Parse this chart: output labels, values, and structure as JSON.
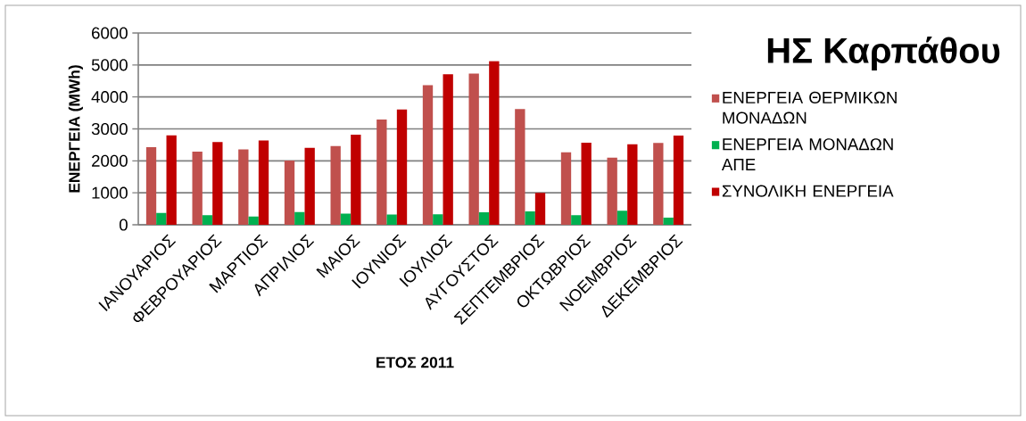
{
  "chart_data": {
    "type": "bar",
    "title": "ΗΣ Καρπάθου",
    "xlabel": "ΕΤΟΣ 2011",
    "ylabel": "ΕΝΕΡΓΕΙΑ (MWh)",
    "categories": [
      "ΙΑΝΟΥΑΡΙΟΣ",
      "ΦΕΒΡΟΥΑΡΙΟΣ",
      "ΜΑΡΤΙΟΣ",
      "ΑΠΡΙΛΙΟΣ",
      "ΜΑΙΟΣ",
      "ΙΟΥΝΙΟΣ",
      "ΙΟΥΛΙΟΣ",
      "ΑΥΓΟΥΣΤΟΣ",
      "ΣΕΠΤΕΜΒΡΙΟΣ",
      "ΟΚΤΩΒΡΙΟΣ",
      "ΝΟΕΜΒΡΙΟΣ",
      "ΔΕΚΕΜΒΡΙΟΣ"
    ],
    "series": [
      {
        "name": "ΕΝΕΡΓΕΙΑ ΘΕΡΜΙΚΩΝ ΜΟΝΑΔΩΝ",
        "color": "#c0504d",
        "values": [
          2430,
          2290,
          2360,
          2010,
          2460,
          3290,
          4370,
          4730,
          3620,
          2270,
          2100,
          2560
        ]
      },
      {
        "name": "ΕΝΕΡΓΕΙΑ ΜΟΝΑΔΩΝ ΑΠΕ",
        "color": "#00b050",
        "values": [
          370,
          300,
          260,
          400,
          350,
          320,
          330,
          390,
          420,
          300,
          440,
          220
        ]
      },
      {
        "name": "ΣΥΝΟΛΙΚΗ ΕΝΕΡΓΕΙΑ",
        "color": "#c00000",
        "values": [
          2800,
          2590,
          2640,
          2410,
          2820,
          3610,
          4710,
          5120,
          1000,
          2570,
          2520,
          2790
        ]
      }
    ],
    "ylim": [
      0,
      6000
    ],
    "yticks": [
      0,
      1000,
      2000,
      3000,
      4000,
      5000,
      6000
    ],
    "grid": "y",
    "legend": "right"
  }
}
